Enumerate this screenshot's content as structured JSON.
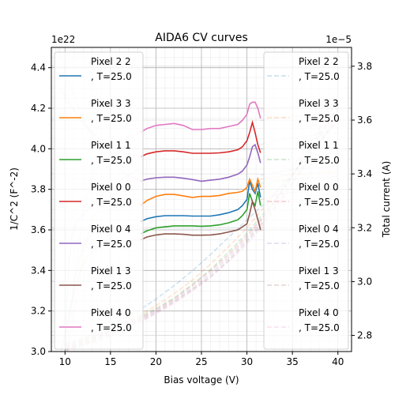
{
  "chart_data": {
    "type": "line",
    "title": "AIDA6 CV curves",
    "xlabel": "Bias voltage (V)",
    "ylabel": "1/C^2 (F^-2)",
    "y2label": "Total current (A)",
    "yscale_label": "1e22",
    "y2scale_label": "1e−5",
    "xlim": [
      8.5,
      41.5
    ],
    "ylim": [
      3.0,
      4.5
    ],
    "y2lim": [
      2.74,
      3.87
    ],
    "xticks": [
      10,
      15,
      20,
      25,
      30,
      35,
      40
    ],
    "xtick_labels": [
      "10",
      "15",
      "20",
      "25",
      "30",
      "35",
      "40"
    ],
    "yticks": [
      3.0,
      3.2,
      3.4,
      3.6,
      3.8,
      4.0,
      4.2,
      4.4
    ],
    "ytick_labels": [
      "3.0",
      "3.2",
      "3.4",
      "3.6",
      "3.8",
      "4.0",
      "4.2",
      "4.4"
    ],
    "y2ticks": [
      2.8,
      3.0,
      3.2,
      3.4,
      3.6,
      3.8
    ],
    "y2tick_labels": [
      "2.8",
      "3.0",
      "3.2",
      "3.4",
      "3.6",
      "3.8"
    ],
    "grid": true,
    "legend_left_placement": "upper-left",
    "legend_right_placement": "upper-right",
    "cv_series": [
      {
        "name": "Pixel 2 2\n, T=25.0",
        "color": "#1f77b4",
        "alpha": 0.12,
        "x": [
          10.0,
          10.4,
          10.8,
          11.3,
          12,
          13,
          14,
          15,
          16,
          17,
          18.3
        ],
        "y": [
          3.0,
          3.42,
          3.58,
          3.64,
          3.68,
          3.72,
          3.77,
          3.81,
          3.84,
          3.87,
          3.9
        ]
      },
      {
        "name": "Pixel 2 2\n, T=25.0",
        "color": "#1f77b4",
        "alpha": 1.0,
        "x": [
          18.3,
          19,
          20,
          21,
          22,
          23,
          24,
          25,
          26,
          27,
          28,
          29,
          29.5,
          30,
          30.3,
          30.6,
          30.9,
          31.2,
          31.5
        ],
        "y": [
          3.64,
          3.655,
          3.665,
          3.67,
          3.67,
          3.67,
          3.668,
          3.668,
          3.668,
          3.675,
          3.685,
          3.7,
          3.72,
          3.75,
          3.84,
          3.8,
          3.78,
          3.83,
          3.76
        ]
      },
      {
        "name": "Pixel 2 2\n, T=25.0",
        "color": "#1f77b4",
        "alpha": 0.12,
        "x": [
          31.5,
          33,
          35,
          37,
          39,
          40
        ],
        "y": [
          3.87,
          3.88,
          3.9,
          3.905,
          3.91,
          3.915
        ]
      },
      {
        "name": "Pixel 3 3\n, T=25.0",
        "color": "#ff7f0e",
        "alpha": 0.12,
        "x": [
          10.3,
          11,
          12,
          13,
          14,
          15,
          16,
          17,
          18.3
        ],
        "y": [
          3.0,
          3.2,
          3.48,
          3.65,
          3.72,
          3.76,
          3.8,
          3.83,
          3.86
        ]
      },
      {
        "name": "Pixel 3 3\n, T=25.0",
        "color": "#ff7f0e",
        "alpha": 1.0,
        "x": [
          18.3,
          19,
          20,
          21,
          22,
          23,
          24,
          25,
          26,
          27,
          28,
          29,
          29.5,
          30,
          30.3,
          30.6,
          30.9,
          31.2,
          31.5
        ],
        "y": [
          3.72,
          3.745,
          3.765,
          3.775,
          3.775,
          3.768,
          3.76,
          3.765,
          3.765,
          3.77,
          3.78,
          3.785,
          3.79,
          3.81,
          3.85,
          3.82,
          3.79,
          3.85,
          3.81
        ]
      },
      {
        "name": "Pixel 3 3\n, T=25.0",
        "color": "#ff7f0e",
        "alpha": 0.12,
        "x": [
          31.5,
          33,
          35,
          37,
          39,
          40
        ],
        "y": [
          3.85,
          3.86,
          3.875,
          3.88,
          3.885,
          3.89
        ]
      },
      {
        "name": "Pixel 1 1\n, T=25.0",
        "color": "#2ca02c",
        "alpha": 0.12,
        "x": [
          10.0,
          11,
          12,
          13,
          14,
          15,
          16,
          17,
          18.3
        ],
        "y": [
          3.0,
          3.35,
          3.52,
          3.58,
          3.6,
          3.61,
          3.62,
          3.62,
          3.62
        ]
      },
      {
        "name": "Pixel 1 1\n, T=25.0",
        "color": "#2ca02c",
        "alpha": 1.0,
        "x": [
          18.3,
          19,
          20,
          21,
          22,
          23,
          24,
          25,
          26,
          27,
          28,
          29,
          29.5,
          30,
          30.3,
          30.6,
          30.9,
          31.2,
          31.5
        ],
        "y": [
          3.58,
          3.595,
          3.61,
          3.615,
          3.62,
          3.62,
          3.62,
          3.618,
          3.62,
          3.625,
          3.635,
          3.65,
          3.67,
          3.7,
          3.78,
          3.74,
          3.72,
          3.79,
          3.72
        ]
      },
      {
        "name": "Pixel 1 1\n, T=25.0",
        "color": "#2ca02c",
        "alpha": 0.12,
        "x": [
          31.5,
          33,
          35,
          37,
          39,
          40
        ],
        "y": [
          3.83,
          3.84,
          3.85,
          3.855,
          3.86,
          3.865
        ]
      },
      {
        "name": "Pixel 0 0\n, T=25.0",
        "color": "#d62728",
        "alpha": 0.12,
        "x": [
          9.5,
          10.5,
          11.5,
          12.5,
          13.5,
          14.5,
          15.5,
          16.5,
          18.3
        ],
        "y": [
          4.3,
          4.22,
          4.16,
          4.1,
          4.06,
          4.03,
          4.0,
          3.98,
          3.96
        ]
      },
      {
        "name": "Pixel 0 0\n, T=25.0",
        "color": "#d62728",
        "alpha": 1.0,
        "x": [
          18.3,
          19,
          20,
          21,
          22,
          23,
          24,
          25,
          26,
          27,
          28,
          29,
          29.5,
          30,
          30.3,
          30.6,
          30.9,
          31.2,
          31.5
        ],
        "y": [
          3.96,
          3.975,
          3.985,
          3.99,
          3.99,
          3.985,
          3.978,
          3.978,
          3.978,
          3.98,
          3.985,
          3.995,
          4.01,
          4.04,
          4.08,
          4.13,
          4.08,
          4.02,
          3.98
        ]
      },
      {
        "name": "Pixel 0 0\n, T=25.0",
        "color": "#d62728",
        "alpha": 0.12,
        "x": [
          31.5,
          33,
          35,
          37,
          39,
          40
        ],
        "y": [
          4.14,
          4.15,
          4.16,
          4.165,
          4.17,
          4.17
        ]
      },
      {
        "name": "Pixel 0 4\n, T=25.0",
        "color": "#9467bd",
        "alpha": 0.12,
        "x": [
          9.3,
          10.5,
          11.5,
          12.5,
          13.5,
          14.5,
          15.5,
          16.5,
          18.3
        ],
        "y": [
          4.5,
          4.32,
          4.2,
          4.1,
          4.02,
          3.96,
          3.92,
          3.88,
          3.84
        ]
      },
      {
        "name": "Pixel 0 4\n, T=25.0",
        "color": "#9467bd",
        "alpha": 1.0,
        "x": [
          18.3,
          19,
          20,
          21,
          22,
          23,
          24,
          25,
          26,
          27,
          28,
          29,
          29.5,
          30,
          30.3,
          30.6,
          30.9,
          31.2,
          31.5
        ],
        "y": [
          3.84,
          3.85,
          3.857,
          3.86,
          3.86,
          3.855,
          3.848,
          3.84,
          3.845,
          3.85,
          3.86,
          3.875,
          3.89,
          3.92,
          3.96,
          4.01,
          4.02,
          3.98,
          3.93
        ]
      },
      {
        "name": "Pixel 0 4\n, T=25.0",
        "color": "#9467bd",
        "alpha": 0.12,
        "x": [
          31.5,
          33,
          35,
          37,
          39,
          40
        ],
        "y": [
          4.02,
          4.04,
          4.055,
          4.065,
          4.075,
          4.08
        ]
      },
      {
        "name": "Pixel 1 3\n, T=25.0",
        "color": "#8c564b",
        "alpha": 0.12,
        "x": [
          9.6,
          10.5,
          11.5,
          12.5,
          13.5,
          14.5,
          15.5,
          16.5,
          18.3
        ],
        "y": [
          3.0,
          3.2,
          3.38,
          3.47,
          3.51,
          3.53,
          3.54,
          3.545,
          3.55
        ]
      },
      {
        "name": "Pixel 1 3\n, T=25.0",
        "color": "#8c564b",
        "alpha": 1.0,
        "x": [
          18.3,
          19,
          20,
          21,
          22,
          23,
          24,
          25,
          26,
          27,
          28,
          29,
          29.5,
          30,
          30.3,
          30.6,
          30.9,
          31.2,
          31.5
        ],
        "y": [
          3.55,
          3.565,
          3.575,
          3.58,
          3.58,
          3.578,
          3.574,
          3.574,
          3.575,
          3.58,
          3.59,
          3.6,
          3.615,
          3.63,
          3.68,
          3.74,
          3.7,
          3.65,
          3.6
        ]
      },
      {
        "name": "Pixel 1 3\n, T=25.0",
        "color": "#8c564b",
        "alpha": 0.12,
        "x": [
          31.5,
          33,
          35,
          37,
          39,
          40
        ],
        "y": [
          3.75,
          3.77,
          3.785,
          3.795,
          3.8,
          3.805
        ]
      },
      {
        "name": "Pixel 4 0\n, T=25.0",
        "color": "#e377c2",
        "alpha": 0.12,
        "x": [
          10.3,
          11,
          12,
          13,
          14,
          15,
          16,
          17,
          18.3
        ],
        "y": [
          3.0,
          3.32,
          3.7,
          3.86,
          3.95,
          4.0,
          4.04,
          4.06,
          4.08
        ]
      },
      {
        "name": "Pixel 4 0\n, T=25.0",
        "color": "#e377c2",
        "alpha": 1.0,
        "x": [
          18.3,
          19,
          20,
          21,
          22,
          23,
          24,
          25,
          26,
          27,
          28,
          29,
          29.5,
          30,
          30.3,
          30.6,
          30.9,
          31.2,
          31.5
        ],
        "y": [
          4.08,
          4.1,
          4.115,
          4.12,
          4.125,
          4.115,
          4.095,
          4.095,
          4.1,
          4.1,
          4.11,
          4.12,
          4.14,
          4.17,
          4.22,
          4.23,
          4.23,
          4.2,
          4.15
        ]
      },
      {
        "name": "Pixel 4 0\n, T=25.0",
        "color": "#e377c2",
        "alpha": 0.12,
        "x": [
          31.5,
          33,
          35,
          37,
          39,
          40
        ],
        "y": [
          4.19,
          4.2,
          4.21,
          4.215,
          4.22,
          4.225
        ]
      }
    ],
    "iv_series": [
      {
        "name": "Pixel 2 2\n, T=25.0",
        "color": "#1f77b4",
        "alpha": 0.2,
        "x": [
          10,
          12,
          14,
          16,
          18,
          20,
          22,
          24,
          26,
          28,
          30,
          31,
          32,
          34,
          36,
          38,
          40
        ],
        "y": [
          2.765,
          2.79,
          2.82,
          2.855,
          2.89,
          2.935,
          2.985,
          3.04,
          3.1,
          3.165,
          3.23,
          3.26,
          3.29,
          3.36,
          3.44,
          3.52,
          3.6
        ]
      },
      {
        "name": "Pixel 3 3\n, T=25.0",
        "color": "#ff7f0e",
        "alpha": 0.2,
        "x": [
          10,
          12,
          14,
          16,
          18,
          20,
          22,
          24,
          26,
          28,
          30,
          31,
          32,
          34,
          36,
          38,
          40
        ],
        "y": [
          2.76,
          2.785,
          2.81,
          2.84,
          2.87,
          2.91,
          2.955,
          3.005,
          3.065,
          3.13,
          3.2,
          3.24,
          3.28,
          3.37,
          3.47,
          3.57,
          3.67
        ]
      },
      {
        "name": "Pixel 1 1\n, T=25.0",
        "color": "#2ca02c",
        "alpha": 0.2,
        "x": [
          10,
          12,
          14,
          16,
          18,
          20,
          22,
          24,
          26,
          28,
          30,
          31,
          32,
          34,
          36,
          38,
          40
        ],
        "y": [
          2.755,
          2.78,
          2.805,
          2.835,
          2.865,
          2.9,
          2.94,
          2.99,
          3.045,
          3.11,
          3.18,
          3.22,
          3.26,
          3.35,
          3.45,
          3.55,
          3.65
        ]
      },
      {
        "name": "Pixel 0 0\n, T=25.0",
        "color": "#d62728",
        "alpha": 0.2,
        "x": [
          10,
          12,
          14,
          16,
          18,
          20,
          22,
          24,
          26,
          28,
          30,
          31,
          32,
          34,
          36,
          38,
          40
        ],
        "y": [
          2.75,
          2.775,
          2.8,
          2.83,
          2.86,
          2.895,
          2.935,
          2.985,
          3.04,
          3.1,
          3.17,
          3.21,
          3.25,
          3.34,
          3.44,
          3.54,
          3.64
        ]
      },
      {
        "name": "Pixel 0 4\n, T=25.0",
        "color": "#9467bd",
        "alpha": 0.2,
        "x": [
          10,
          12,
          14,
          16,
          18,
          20,
          22,
          24,
          26,
          28,
          30,
          31,
          32,
          34,
          36,
          38,
          40
        ],
        "y": [
          2.75,
          2.77,
          2.795,
          2.825,
          2.855,
          2.89,
          2.93,
          2.975,
          3.03,
          3.09,
          3.16,
          3.2,
          3.245,
          3.34,
          3.45,
          3.56,
          3.68
        ]
      },
      {
        "name": "Pixel 1 3\n, T=25.0",
        "color": "#8c564b",
        "alpha": 0.2,
        "x": [
          10,
          12,
          14,
          16,
          18,
          20,
          22,
          24,
          26,
          28,
          30,
          31,
          32,
          34,
          36,
          38,
          40
        ],
        "y": [
          2.745,
          2.765,
          2.79,
          2.82,
          2.85,
          2.885,
          2.925,
          2.97,
          3.02,
          3.08,
          3.15,
          3.19,
          3.23,
          3.32,
          3.42,
          3.52,
          3.62
        ]
      },
      {
        "name": "Pixel 4 0\n, T=25.0",
        "color": "#e377c2",
        "alpha": 0.2,
        "x": [
          10,
          12,
          14,
          16,
          18,
          20,
          22,
          24,
          26,
          28,
          30,
          31,
          32,
          34,
          36,
          38,
          40
        ],
        "y": [
          2.745,
          2.76,
          2.785,
          2.815,
          2.845,
          2.88,
          2.92,
          2.965,
          3.015,
          3.075,
          3.14,
          3.18,
          3.22,
          3.31,
          3.41,
          3.51,
          3.61
        ]
      }
    ],
    "legend_entries": [
      {
        "name": "Pixel 2 2",
        "suffix": ", T=25.0",
        "color": "#1f77b4"
      },
      {
        "name": "Pixel 3 3",
        "suffix": ", T=25.0",
        "color": "#ff7f0e"
      },
      {
        "name": "Pixel 1 1",
        "suffix": ", T=25.0",
        "color": "#2ca02c"
      },
      {
        "name": "Pixel 0 0",
        "suffix": ", T=25.0",
        "color": "#d62728"
      },
      {
        "name": "Pixel 0 4",
        "suffix": ", T=25.0",
        "color": "#9467bd"
      },
      {
        "name": "Pixel 1 3",
        "suffix": ", T=25.0",
        "color": "#8c564b"
      },
      {
        "name": "Pixel 4 0",
        "suffix": ", T=25.0",
        "color": "#e377c2"
      }
    ]
  }
}
